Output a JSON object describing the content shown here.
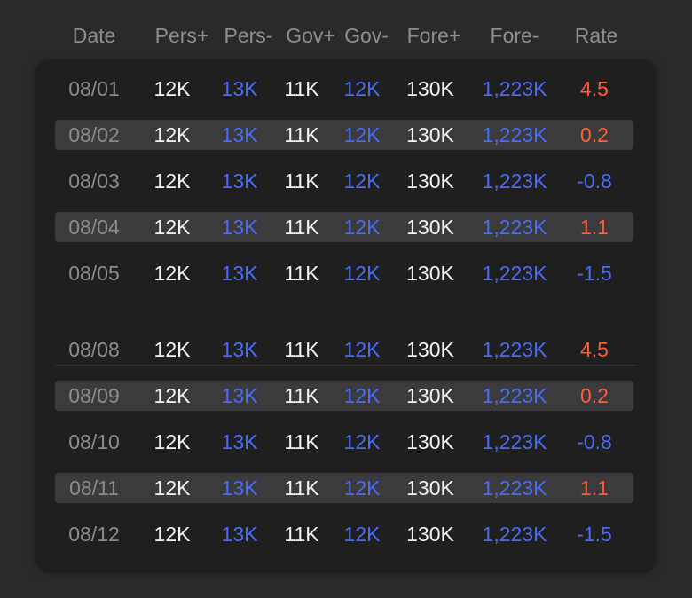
{
  "header": {
    "date": "Date",
    "pers_plus": "Pers+",
    "pers_minus": "Pers-",
    "gov_plus": "Gov+",
    "gov_minus": "Gov-",
    "fore_plus": "Fore+",
    "fore_minus": "Fore-",
    "rate": "Rate"
  },
  "colors": {
    "background": "#2a2a2b",
    "panel": "#1f1f20",
    "stripe": "#3b3b3d",
    "blue": "#4a6cf2",
    "orange": "#ff5d35",
    "white": "#f2f2f2",
    "gray": "#8b8b8e"
  },
  "rows": [
    {
      "date": "08/01",
      "pers_plus": "12K",
      "pers_minus": "13K",
      "gov_plus": "11K",
      "gov_minus": "12K",
      "fore_plus": "130K",
      "fore_minus": "1,223K",
      "rate": "4.5",
      "rate_sign": "pos",
      "striped": false
    },
    {
      "date": "08/02",
      "pers_plus": "12K",
      "pers_minus": "13K",
      "gov_plus": "11K",
      "gov_minus": "12K",
      "fore_plus": "130K",
      "fore_minus": "1,223K",
      "rate": "0.2",
      "rate_sign": "pos",
      "striped": true
    },
    {
      "date": "08/03",
      "pers_plus": "12K",
      "pers_minus": "13K",
      "gov_plus": "11K",
      "gov_minus": "12K",
      "fore_plus": "130K",
      "fore_minus": "1,223K",
      "rate": "-0.8",
      "rate_sign": "neg",
      "striped": false
    },
    {
      "date": "08/04",
      "pers_plus": "12K",
      "pers_minus": "13K",
      "gov_plus": "11K",
      "gov_minus": "12K",
      "fore_plus": "130K",
      "fore_minus": "1,223K",
      "rate": "1.1",
      "rate_sign": "pos",
      "striped": true
    },
    {
      "date": "08/05",
      "pers_plus": "12K",
      "pers_minus": "13K",
      "gov_plus": "11K",
      "gov_minus": "12K",
      "fore_plus": "130K",
      "fore_minus": "1,223K",
      "rate": "-1.5",
      "rate_sign": "neg",
      "striped": false
    },
    {
      "date": "08/08",
      "pers_plus": "12K",
      "pers_minus": "13K",
      "gov_plus": "11K",
      "gov_minus": "12K",
      "fore_plus": "130K",
      "fore_minus": "1,223K",
      "rate": "4.5",
      "rate_sign": "pos",
      "striped": false
    },
    {
      "date": "08/09",
      "pers_plus": "12K",
      "pers_minus": "13K",
      "gov_plus": "11K",
      "gov_minus": "12K",
      "fore_plus": "130K",
      "fore_minus": "1,223K",
      "rate": "0.2",
      "rate_sign": "pos",
      "striped": true
    },
    {
      "date": "08/10",
      "pers_plus": "12K",
      "pers_minus": "13K",
      "gov_plus": "11K",
      "gov_minus": "12K",
      "fore_plus": "130K",
      "fore_minus": "1,223K",
      "rate": "-0.8",
      "rate_sign": "neg",
      "striped": false
    },
    {
      "date": "08/11",
      "pers_plus": "12K",
      "pers_minus": "13K",
      "gov_plus": "11K",
      "gov_minus": "12K",
      "fore_plus": "130K",
      "fore_minus": "1,223K",
      "rate": "1.1",
      "rate_sign": "pos",
      "striped": true
    },
    {
      "date": "08/12",
      "pers_plus": "12K",
      "pers_minus": "13K",
      "gov_plus": "11K",
      "gov_minus": "12K",
      "fore_plus": "130K",
      "fore_minus": "1,223K",
      "rate": "-1.5",
      "rate_sign": "neg",
      "striped": false
    }
  ]
}
